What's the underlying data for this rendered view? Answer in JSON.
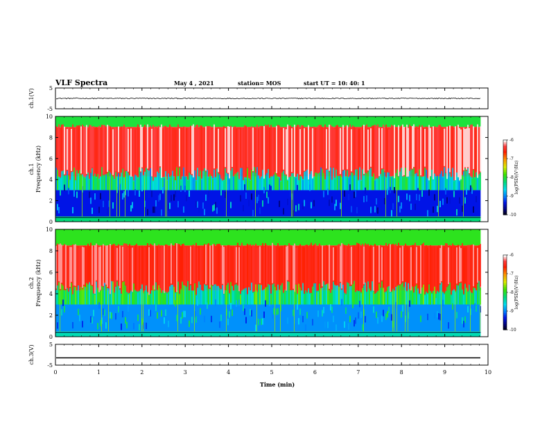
{
  "header": {
    "title": "VLF Spectra",
    "date": "May 4 , 2021",
    "station": "station= MOS",
    "start_ut": "start UT = 10: 40: 1"
  },
  "chart_data": [
    {
      "type": "line",
      "name": "ch1-waveform",
      "ylabel": "ch.1(V)",
      "xlim": [
        0,
        10
      ],
      "ylim": [
        -5,
        5
      ],
      "yticks": [
        "5",
        "-5"
      ],
      "approx_level": 0.0,
      "noise": 0.25,
      "x_end": 9.83
    },
    {
      "type": "heatmap",
      "name": "ch1-spectrogram",
      "ylabel": "ch.1\nFrequency (kHz)",
      "xlim": [
        0,
        10
      ],
      "ylim": [
        0,
        10
      ],
      "yticks": [
        "0",
        "2",
        "4",
        "6",
        "8",
        "10"
      ],
      "x_end": 9.83,
      "colorbar": {
        "label": "log(PSD)(V²/Hz)",
        "range": [
          -10,
          -6
        ],
        "ticks": [
          "-6",
          "-7",
          "-8",
          "-9",
          "-10"
        ]
      },
      "bands": [
        {
          "f_from": 0.0,
          "f_to": 0.5,
          "level": -8.2
        },
        {
          "f_from": 0.5,
          "f_to": 3.0,
          "level": -9.3
        },
        {
          "f_from": 3.0,
          "f_to": 4.3,
          "level": -8.4
        },
        {
          "f_from": 4.3,
          "f_to": 9.0,
          "level": -6.4
        },
        {
          "f_from": 9.0,
          "f_to": 10.0,
          "level": -8.0
        }
      ]
    },
    {
      "type": "heatmap",
      "name": "ch2-spectrogram",
      "ylabel": "ch.2\nFrequency (kHz)",
      "xlim": [
        0,
        10
      ],
      "ylim": [
        0,
        10
      ],
      "yticks": [
        "0",
        "2",
        "4",
        "6",
        "8",
        "10"
      ],
      "x_end": 9.83,
      "colorbar": {
        "label": "log(PSD)(V²/Hz)",
        "range": [
          -10,
          -6
        ],
        "ticks": [
          "-6",
          "-7",
          "-8",
          "-9",
          "-10"
        ]
      },
      "bands": [
        {
          "f_from": 0.0,
          "f_to": 0.5,
          "level": -8.4
        },
        {
          "f_from": 0.5,
          "f_to": 3.0,
          "level": -8.9
        },
        {
          "f_from": 3.0,
          "f_to": 4.3,
          "level": -8.2
        },
        {
          "f_from": 4.3,
          "f_to": 8.5,
          "level": -6.5
        },
        {
          "f_from": 8.5,
          "f_to": 10.0,
          "level": -7.9
        }
      ]
    },
    {
      "type": "line",
      "name": "ch3-waveform",
      "ylabel": "ch.3(V)",
      "xlim": [
        0,
        10
      ],
      "ylim": [
        -5,
        5
      ],
      "yticks": [
        "5",
        "-5"
      ],
      "approx_level": -1.5,
      "noise": 0.0,
      "x_end": 9.83
    }
  ],
  "x_axis": {
    "label": "Time (min)",
    "ticks": [
      "0",
      "1",
      "2",
      "3",
      "4",
      "5",
      "6",
      "7",
      "8",
      "9",
      "10"
    ],
    "range": [
      0,
      10
    ]
  }
}
